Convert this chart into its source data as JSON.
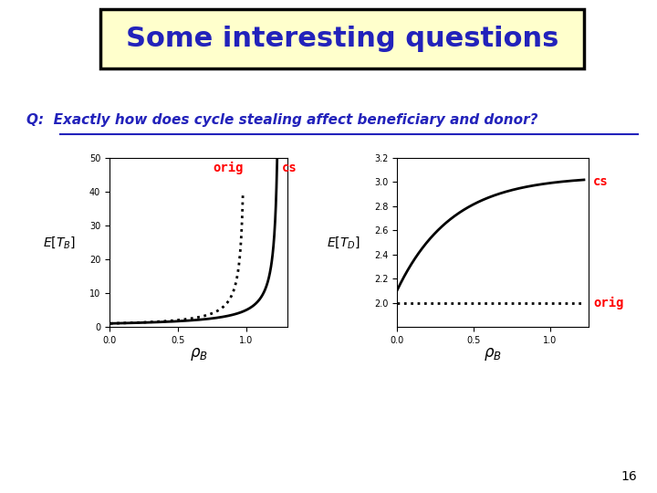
{
  "title": "Some interesting questions",
  "question_prefix": "Q:  ",
  "question_text": "Exactly how does cycle stealing affect beneficiary and donor?",
  "title_bg": "#ffffcc",
  "title_border": "#000000",
  "title_color": "#2222bb",
  "question_color": "#2222bb",
  "slide_number": "16",
  "bg_color": "#ffffff",
  "plot1": {
    "ylabel": "E[T_B]",
    "xlabel": "ρ_B",
    "xlim": [
      0,
      1.3
    ],
    "ylim": [
      0,
      50
    ],
    "yticks": [
      0,
      10,
      20,
      30,
      40,
      50
    ],
    "xticks": [
      0,
      0.5,
      1
    ],
    "label_orig": "orig",
    "label_cs": "cs",
    "orig_asymptote": 1.0,
    "cs_asymptote": 1.25
  },
  "plot2": {
    "ylabel": "E[T_D]",
    "xlabel": "ρ_B",
    "xlim": [
      0,
      1.25
    ],
    "ylim": [
      1.8,
      3.2
    ],
    "yticks": [
      2.0,
      2.2,
      2.4,
      2.6,
      2.8,
      3.0,
      3.2
    ],
    "xticks": [
      0,
      0.5,
      1
    ],
    "label_orig": "orig",
    "label_cs": "cs",
    "orig_value": 2.0
  }
}
